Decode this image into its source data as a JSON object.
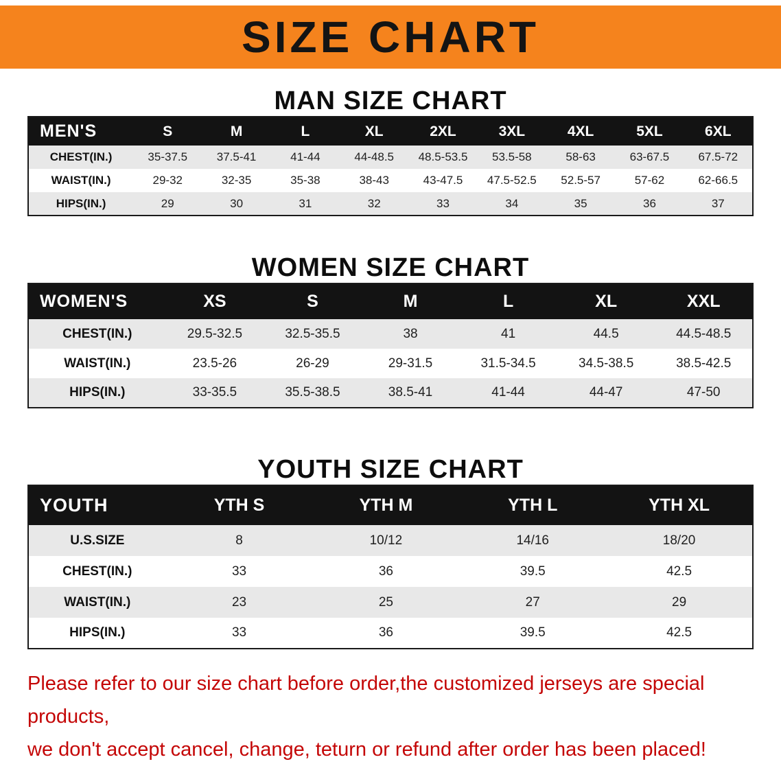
{
  "banner": {
    "title": "SIZE CHART"
  },
  "men": {
    "heading": "MAN SIZE CHART",
    "header": [
      "MEN'S",
      "S",
      "M",
      "L",
      "XL",
      "2XL",
      "3XL",
      "4XL",
      "5XL",
      "6XL"
    ],
    "rows": [
      {
        "label": "CHEST(IN.)",
        "values": [
          "35-37.5",
          "37.5-41",
          "41-44",
          "44-48.5",
          "48.5-53.5",
          "53.5-58",
          "58-63",
          "63-67.5",
          "67.5-72"
        ]
      },
      {
        "label": "WAIST(IN.)",
        "values": [
          "29-32",
          "32-35",
          "35-38",
          "38-43",
          "43-47.5",
          "47.5-52.5",
          "52.5-57",
          "57-62",
          "62-66.5"
        ]
      },
      {
        "label": "HIPS(IN.)",
        "values": [
          "29",
          "30",
          "31",
          "32",
          "33",
          "34",
          "35",
          "36",
          "37"
        ]
      }
    ]
  },
  "women": {
    "heading": "WOMEN SIZE CHART",
    "header": [
      "WOMEN'S",
      "XS",
      "S",
      "M",
      "L",
      "XL",
      "XXL"
    ],
    "rows": [
      {
        "label": "CHEST(IN.)",
        "values": [
          "29.5-32.5",
          "32.5-35.5",
          "38",
          "41",
          "44.5",
          "44.5-48.5"
        ]
      },
      {
        "label": "WAIST(IN.)",
        "values": [
          "23.5-26",
          "26-29",
          "29-31.5",
          "31.5-34.5",
          "34.5-38.5",
          "38.5-42.5"
        ]
      },
      {
        "label": "HIPS(IN.)",
        "values": [
          "33-35.5",
          "35.5-38.5",
          "38.5-41",
          "41-44",
          "44-47",
          "47-50"
        ]
      }
    ]
  },
  "youth": {
    "heading": "YOUTH SIZE CHART",
    "header": [
      "YOUTH",
      "YTH S",
      "YTH M",
      "YTH L",
      "YTH XL"
    ],
    "rows": [
      {
        "label": "U.S.SIZE",
        "values": [
          "8",
          "10/12",
          "14/16",
          "18/20"
        ]
      },
      {
        "label": "CHEST(IN.)",
        "values": [
          "33",
          "36",
          "39.5",
          "42.5"
        ]
      },
      {
        "label": "WAIST(IN.)",
        "values": [
          "23",
          "25",
          "27",
          "29"
        ]
      },
      {
        "label": "HIPS(IN.)",
        "values": [
          "33",
          "36",
          "39.5",
          "42.5"
        ]
      }
    ]
  },
  "footer": {
    "line1": "Please refer to our size chart before order,the customized jerseys are special products,",
    "line2": "we don't accept cancel, change, teturn or refund after order has been placed!"
  },
  "colors": {
    "banner_bg": "#f5831d",
    "table_header_bg": "#131313",
    "row_alt_bg": "#e8e8e8",
    "footer_text": "#c40606"
  }
}
